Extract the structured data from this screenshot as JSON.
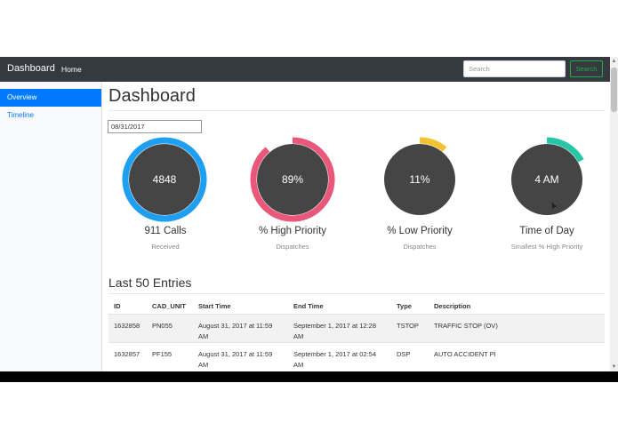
{
  "navbar": {
    "brand": "Dashboard",
    "home_label": "Home",
    "search_placeholder": "Search",
    "search_button": "Search"
  },
  "sidebar": {
    "items": [
      {
        "label": "Overview",
        "active": true
      },
      {
        "label": "Timeline",
        "active": false
      }
    ]
  },
  "main": {
    "title": "Dashboard",
    "date_value": "08/31/2017",
    "stats": [
      {
        "value": "4848",
        "label": "911 Calls",
        "sublabel": "Received",
        "ring_color": "#1e9ff2",
        "fraction": 1.0
      },
      {
        "value": "89%",
        "label": "% High Priority",
        "sublabel": "Dispatches",
        "ring_color": "#e9577a",
        "fraction": 0.89
      },
      {
        "value": "11%",
        "label": "% Low Priority",
        "sublabel": "Dispatches",
        "ring_color": "#f2c230",
        "fraction": 0.11
      },
      {
        "value": "4 AM",
        "label": "Time of Day",
        "sublabel": "Smallest % High Priority",
        "ring_color": "#26c6a6",
        "fraction": 0.17
      }
    ],
    "section_title": "Last 50 Entries",
    "table": {
      "columns": [
        "ID",
        "CAD_UNIT",
        "Start Time",
        "End Time",
        "Type",
        "Description"
      ],
      "rows": [
        [
          "1632858",
          "PN055",
          "August 31, 2017 at 11:59 AM",
          "September 1, 2017 at 12:28 AM",
          "TSTOP",
          "TRAFFIC STOP (OV)"
        ],
        [
          "1632857",
          "PF155",
          "August 31, 2017 at 11:59 AM",
          "September 1, 2017 at 02:54 AM",
          "DSP",
          "AUTO ACCIDENT PI"
        ]
      ]
    }
  },
  "colors": {
    "navbar_bg": "#343a40",
    "accent": "#007bff",
    "search_green": "#28a745",
    "gauge_fill": "#454545"
  }
}
